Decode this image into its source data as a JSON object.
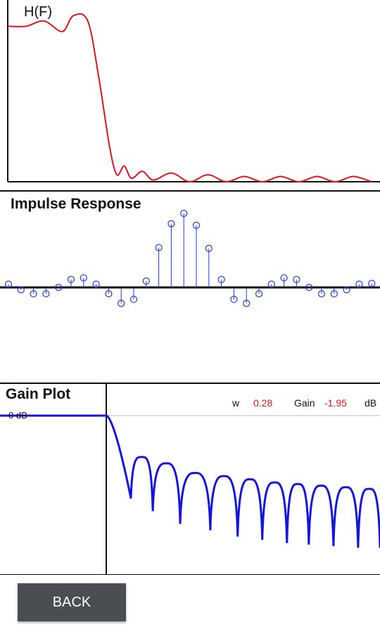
{
  "chart_data": [
    {
      "type": "line",
      "title": "H(F)",
      "series_color": "#e0141e",
      "note": "frequency response magnitude, normalized",
      "x": [
        0.0,
        0.05,
        0.1,
        0.15,
        0.18,
        0.22,
        0.25,
        0.28,
        0.3,
        0.32,
        0.34,
        0.37,
        0.4,
        0.45,
        0.5,
        0.55,
        0.6,
        0.65,
        0.7,
        0.75,
        0.8,
        0.85,
        0.9,
        0.95,
        1.0
      ],
      "y": [
        0.89,
        0.89,
        0.92,
        0.86,
        0.95,
        0.92,
        0.6,
        0.2,
        0.04,
        0.09,
        0.02,
        0.06,
        0.01,
        0.05,
        0.0,
        0.04,
        0.0,
        0.03,
        0.0,
        0.03,
        0.0,
        0.03,
        0.0,
        0.03,
        0.0
      ]
    },
    {
      "type": "scatter",
      "title": "Impulse Response",
      "style": "stem",
      "series_color": "#1e3cdc",
      "values": [
        0.04,
        -0.03,
        -0.08,
        -0.08,
        0.0,
        0.1,
        0.12,
        0.04,
        -0.08,
        -0.2,
        -0.15,
        0.08,
        0.5,
        0.8,
        0.93,
        0.78,
        0.49,
        0.1,
        -0.15,
        -0.2,
        -0.08,
        0.04,
        0.12,
        0.1,
        0.0,
        -0.08,
        -0.08,
        -0.03,
        0.04,
        0.05
      ]
    },
    {
      "type": "line",
      "title": "Gain Plot",
      "series_color": "#1414dc",
      "ref_label": "0 dB",
      "readout": {
        "w_label": "w",
        "w_value": "0.28",
        "gain_label": "Gain",
        "gain_value": "-1.95",
        "unit": "dB"
      },
      "passband_end": 0.0,
      "lobe_nulls": [
        0.09,
        0.17,
        0.27,
        0.38,
        0.48,
        0.57,
        0.66,
        0.74,
        0.83,
        0.92,
        1.0
      ],
      "null_depth": [
        0.52,
        0.6,
        0.68,
        0.72,
        0.76,
        0.78,
        0.8,
        0.81,
        0.82,
        0.83,
        0.83
      ],
      "lobe_peak": [
        0.26,
        0.3,
        0.36,
        0.38,
        0.4,
        0.42,
        0.43,
        0.44,
        0.45,
        0.46
      ]
    }
  ],
  "ui": {
    "back_label": "BACK"
  }
}
